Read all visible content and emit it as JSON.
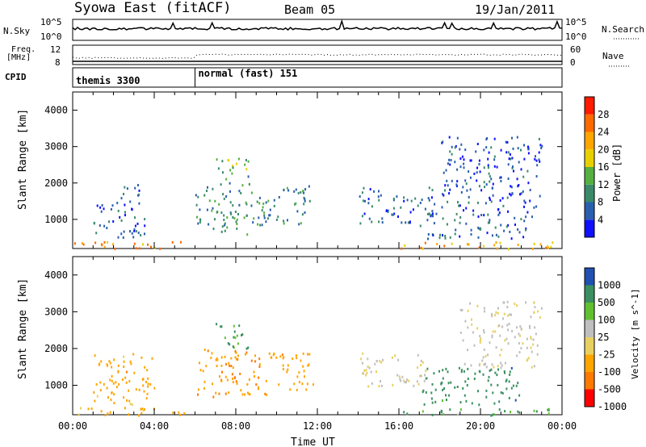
{
  "header": {
    "site": "Syowa East (fitACF)",
    "beam": "Beam 05",
    "date": "19/Jan/2011"
  },
  "sky_panel": {
    "left_label": "N.Sky",
    "right_label": "N.Search",
    "left_ticks": [
      "10^5",
      "10^0"
    ],
    "right_ticks": [
      "10^5",
      "10^0"
    ]
  },
  "freq_panel": {
    "left_label_1": "Freq.",
    "left_label_2": "[MHz]",
    "right_label": "Nave",
    "left_ticks": [
      "12",
      "8"
    ],
    "right_ticks": [
      "60",
      "0"
    ]
  },
  "cpid_panel": {
    "label": "CPID",
    "modes": [
      {
        "name": "themis 3300",
        "start_hour": 0
      },
      {
        "name": "normal (fast) 151",
        "start_hour": 6
      }
    ]
  },
  "colors": {
    "power": [
      "#1010ff",
      "#2a5faf",
      "#3a8a6a",
      "#55b040",
      "#e8d000",
      "#ffa500",
      "#ff6a00",
      "#ff1a00"
    ],
    "velocity": [
      "#ff0000",
      "#ff7a00",
      "#ffa500",
      "#e8d060",
      "#bfbfbf",
      "#60c030",
      "#3a9060",
      "#2050b0"
    ]
  },
  "chart_data": [
    {
      "type": "heatmap",
      "name": "power",
      "ylabel": "Slant Range [km]",
      "yticks": [
        "1000",
        "2000",
        "3000",
        "4000"
      ],
      "ylim": [
        200,
        4500
      ],
      "xlim": [
        0,
        24
      ],
      "colorbar_label": "Power [dB]",
      "colorbar_ticks": [
        "4",
        "8",
        "12",
        "16",
        "20",
        "24",
        "28"
      ],
      "colorbar_range": [
        0,
        32
      ],
      "regions": [
        {
          "t0": 0.0,
          "t1": 5.8,
          "r0": 200,
          "r1": 420,
          "v": 22
        },
        {
          "t0": 1.0,
          "t1": 3.6,
          "r0": 500,
          "r1": 1500,
          "v": 7
        },
        {
          "t0": 2.2,
          "t1": 3.4,
          "r0": 1500,
          "r1": 2000,
          "v": 6
        },
        {
          "t0": 6.0,
          "t1": 9.5,
          "r0": 600,
          "r1": 2000,
          "v": 10
        },
        {
          "t0": 7.0,
          "t1": 8.6,
          "r0": 2000,
          "r1": 2700,
          "v": 12
        },
        {
          "t0": 9.5,
          "t1": 11.6,
          "r0": 900,
          "r1": 2000,
          "v": 9
        },
        {
          "t0": 14.0,
          "t1": 17.8,
          "r0": 900,
          "r1": 1900,
          "v": 6
        },
        {
          "t0": 16.0,
          "t1": 23.8,
          "r0": 200,
          "r1": 400,
          "v": 22
        },
        {
          "t0": 17.0,
          "t1": 22.5,
          "r0": 500,
          "r1": 1200,
          "v": 7
        },
        {
          "t0": 18.0,
          "t1": 23.0,
          "r0": 1200,
          "r1": 3300,
          "v": 5
        }
      ]
    },
    {
      "type": "heatmap",
      "name": "velocity",
      "ylabel": "Slant Range [km]",
      "yticks": [
        "1000",
        "2000",
        "3000",
        "4000"
      ],
      "ylim": [
        200,
        4500
      ],
      "xlim": [
        0,
        24
      ],
      "xticks": [
        "00:00",
        "04:00",
        "08:00",
        "12:00",
        "16:00",
        "20:00",
        "00:00"
      ],
      "xlabel": "Time UT",
      "colorbar_label": "Velocity [m s^-1]",
      "colorbar_ticks": [
        "-1000",
        "-500",
        "-100",
        "-25",
        "25",
        "100",
        "500",
        "1000"
      ],
      "regions": [
        {
          "t0": 0.0,
          "t1": 5.8,
          "r0": 200,
          "r1": 420,
          "v": -200
        },
        {
          "t0": 1.0,
          "t1": 4.0,
          "r0": 500,
          "r1": 1900,
          "v": -300
        },
        {
          "t0": 6.0,
          "t1": 9.5,
          "r0": 700,
          "r1": 2000,
          "v": -400
        },
        {
          "t0": 7.0,
          "t1": 8.6,
          "r0": 2000,
          "r1": 2700,
          "v": 150
        },
        {
          "t0": 9.5,
          "t1": 11.8,
          "r0": 900,
          "r1": 1900,
          "v": -300
        },
        {
          "t0": 14.0,
          "t1": 17.5,
          "r0": 1000,
          "r1": 1900,
          "v": -20
        },
        {
          "t0": 16.0,
          "t1": 23.5,
          "r0": 200,
          "r1": 400,
          "v": 100
        },
        {
          "t0": 17.0,
          "t1": 22.0,
          "r0": 500,
          "r1": 1500,
          "v": 300
        },
        {
          "t0": 19.0,
          "t1": 23.0,
          "r0": 1500,
          "r1": 3300,
          "v": -20
        }
      ]
    }
  ]
}
